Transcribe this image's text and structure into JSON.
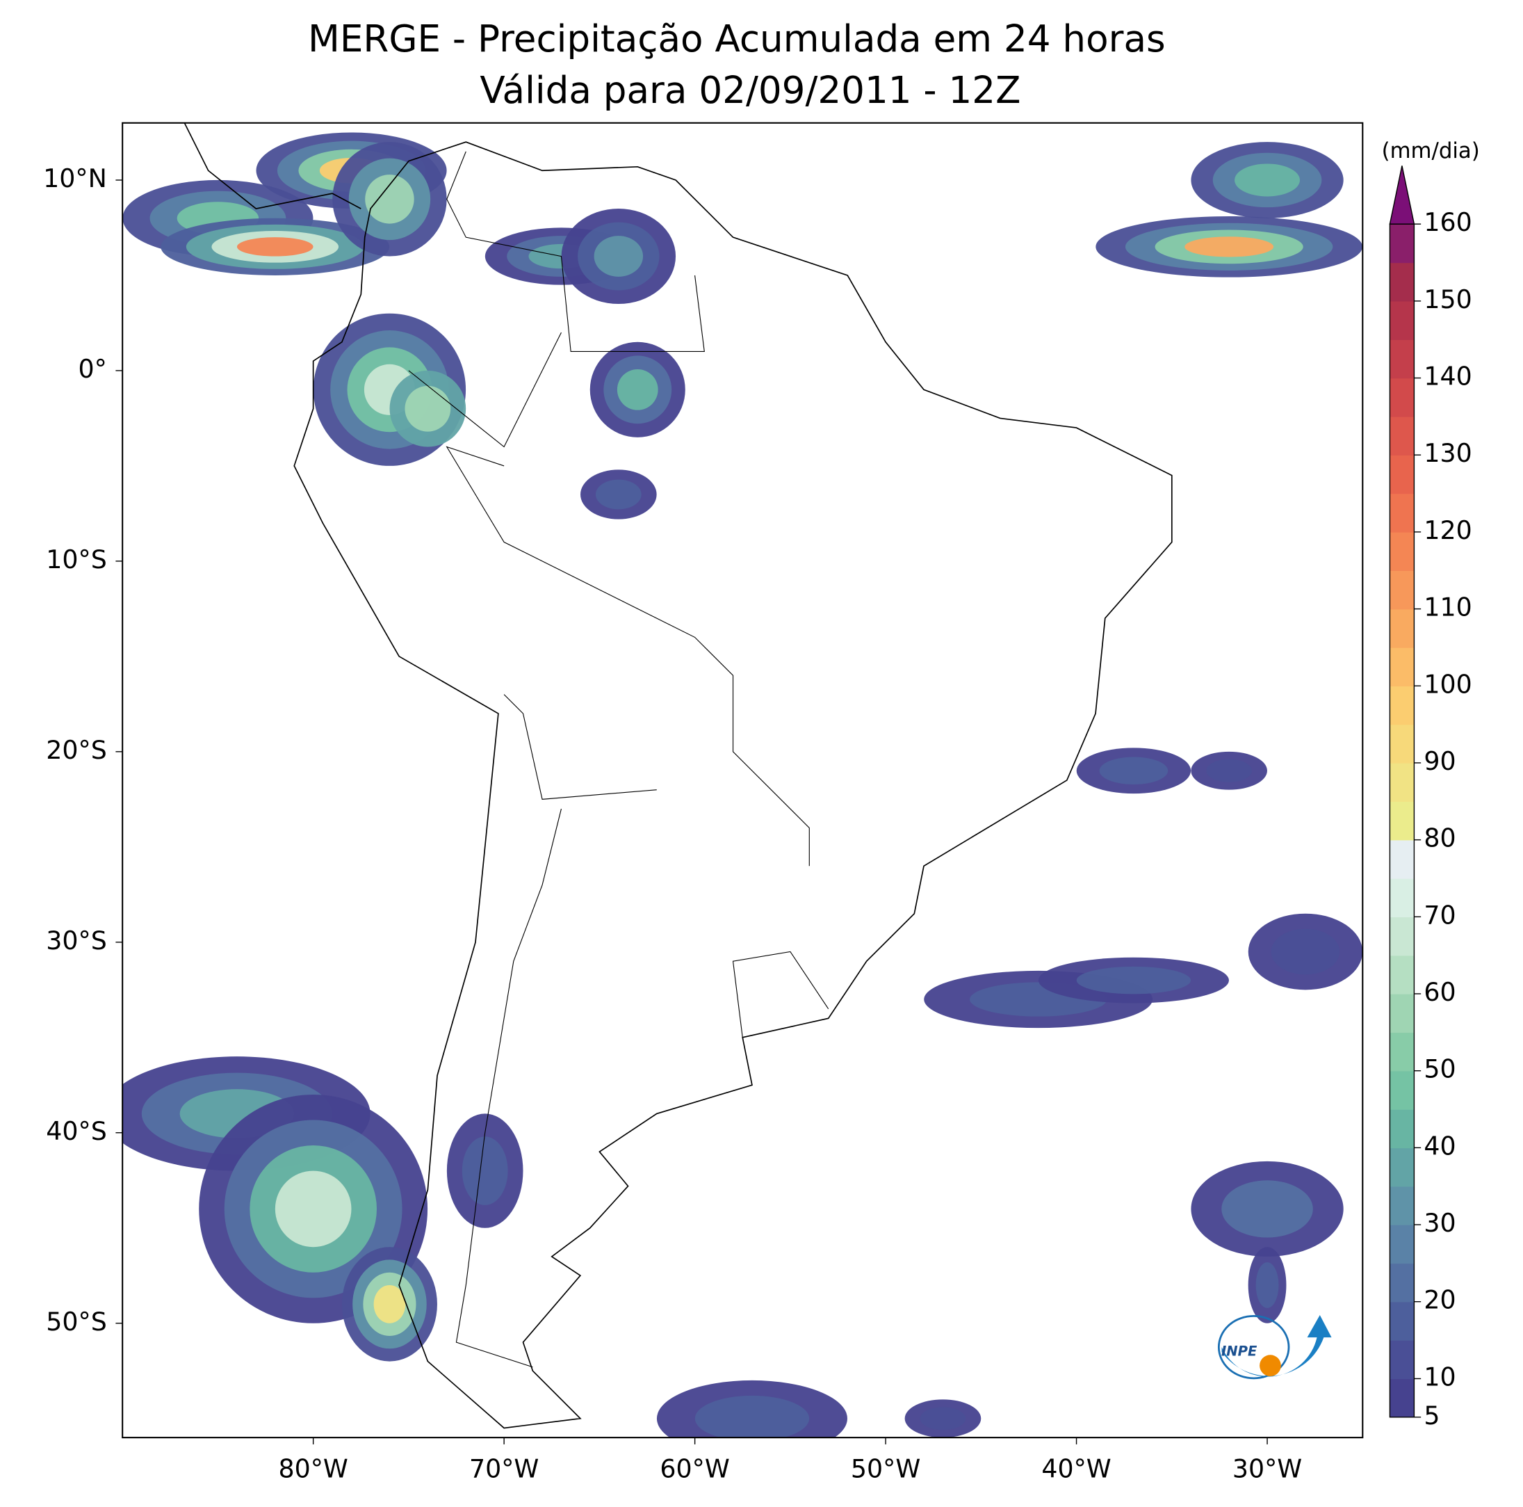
{
  "map": {
    "title": [
      "MERGE - Precipitação Acumulada em 24 horas",
      "Válida para 02/09/2011 - 12Z"
    ],
    "xlim": [
      -90,
      -25
    ],
    "ylim": [
      -56,
      13
    ],
    "xticks": [
      {
        "value": -80,
        "label": "80°W"
      },
      {
        "value": -70,
        "label": "70°W"
      },
      {
        "value": -60,
        "label": "60°W"
      },
      {
        "value": -50,
        "label": "50°W"
      },
      {
        "value": -40,
        "label": "40°W"
      },
      {
        "value": -30,
        "label": "30°W"
      }
    ],
    "yticks": [
      {
        "value": 10,
        "label": "10°N"
      },
      {
        "value": 0,
        "label": "0°"
      },
      {
        "value": -10,
        "label": "10°S"
      },
      {
        "value": -20,
        "label": "20°S"
      },
      {
        "value": -30,
        "label": "30°S"
      },
      {
        "value": -40,
        "label": "40°S"
      },
      {
        "value": -50,
        "label": "50°S"
      }
    ],
    "colorbar": {
      "label": "(mm/dia)",
      "lim": [
        5,
        160
      ],
      "ticks": [
        5,
        10,
        20,
        30,
        40,
        50,
        60,
        70,
        80,
        90,
        100,
        110,
        120,
        130,
        140,
        150,
        160
      ],
      "colors": [
        "#46428f",
        "#4a4f96",
        "#4d5f9c",
        "#5470a2",
        "#5a82a7",
        "#5f93a8",
        "#62a4a6",
        "#68b5a3",
        "#75c3a4",
        "#88cca8",
        "#9fd5b3",
        "#b5dfc2",
        "#c9e7d3",
        "#d9efe4",
        "#e6eef2",
        "#ebec8c",
        "#f1e384",
        "#f7d97a",
        "#fbcd70",
        "#fbbc68",
        "#f9aa60",
        "#f7985a",
        "#f48654",
        "#ef7450",
        "#e8644d",
        "#de574c",
        "#d24a4b",
        "#c43f4b",
        "#b5354b",
        "#a42d4c",
        "#8a1f6a"
      ],
      "over_color": "#7b0f77"
    },
    "logo_text": "INPE"
  }
}
